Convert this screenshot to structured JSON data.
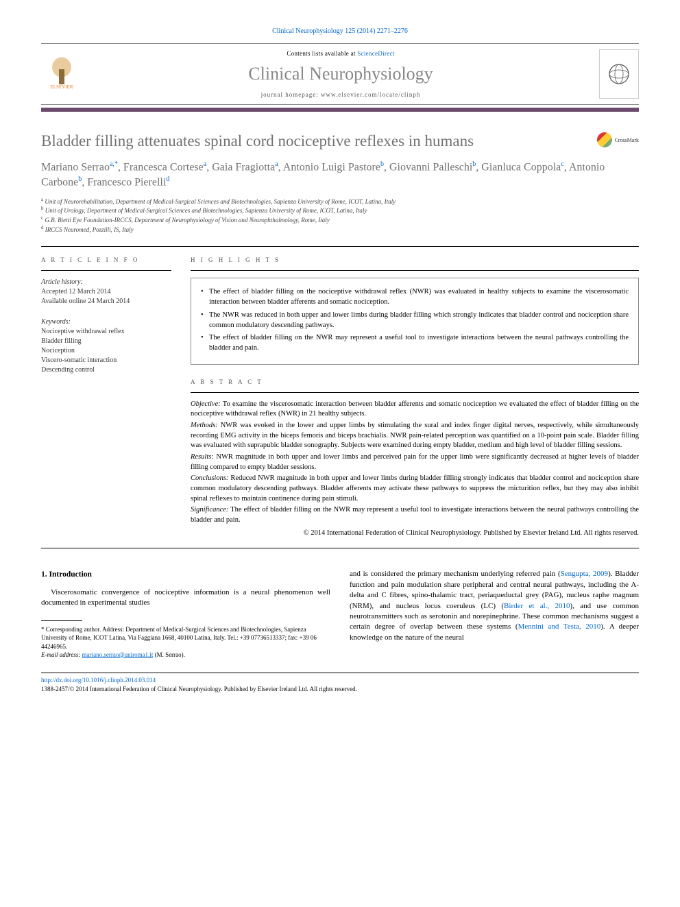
{
  "journal_ref": "Clinical Neurophysiology 125 (2014) 2271–2276",
  "header": {
    "contents_prefix": "Contents lists available at ",
    "contents_link": "ScienceDirect",
    "journal_name": "Clinical Neurophysiology",
    "homepage_prefix": "journal homepage: ",
    "homepage_url": "www.elsevier.com/locate/clinph",
    "publisher_label": "ELSEVIER"
  },
  "crossmark_label": "CrossMark",
  "title": "Bladder filling attenuates spinal cord nociceptive reflexes in humans",
  "authors_html": "Mariano Serrao|a,*|, Francesca Cortese|a|, Gaia Fragiotta|a|, Antonio Luigi Pastore|b|, Giovanni Palleschi|b|, Gianluca Coppola|c|, Antonio Carbone|b|, Francesco Pierelli|d|",
  "affiliations": [
    {
      "key": "a",
      "text": "Unit of Neurorehabilitation, Department of Medical-Surgical Sciences and Biotechnologies, Sapienza University of Rome, ICOT, Latina, Italy"
    },
    {
      "key": "b",
      "text": "Unit of Urology, Department of Medical-Surgical Sciences and Biotechnologies, Sapienza University of Rome, ICOT, Latina, Italy"
    },
    {
      "key": "c",
      "text": "G.B. Bietti Eye Foundation-IRCCS, Department of Neurophysiology of Vision and Neurophthalmology, Rome, Italy"
    },
    {
      "key": "d",
      "text": "IRCCS Neuromed, Pozzilli, IS, Italy"
    }
  ],
  "info": {
    "section_label": "A R T I C L E   I N F O",
    "history_hdr": "Article history:",
    "accepted": "Accepted 12 March 2014",
    "online": "Available online 24 March 2014",
    "keywords_hdr": "Keywords:",
    "keywords": [
      "Nociceptive withdrawal reflex",
      "Bladder filling",
      "Nociception",
      "Viscero-somatic interaction",
      "Descending control"
    ]
  },
  "highlights": {
    "label": "H I G H L I G H T S",
    "items": [
      "The effect of bladder filling on the nociceptive withdrawal reflex (NWR) was evaluated in healthy subjects to examine the viscerosomatic interaction between bladder afferents and somatic nociception.",
      "The NWR was reduced in both upper and lower limbs during bladder filling which strongly indicates that bladder control and nociception share common modulatory descending pathways.",
      "The effect of bladder filling on the NWR may represent a useful tool to investigate interactions between the neural pathways controlling the bladder and pain."
    ]
  },
  "abstract": {
    "label": "A B S T R A C T",
    "objective_lead": "Objective:",
    "objective": " To examine the viscerosomatic interaction between bladder afferents and somatic nociception we evaluated the effect of bladder filling on the nociceptive withdrawal reflex (NWR) in 21 healthy subjects.",
    "methods_lead": "Methods:",
    "methods": " NWR was evoked in the lower and upper limbs by stimulating the sural and index finger digital nerves, respectively, while simultaneously recording EMG activity in the biceps femoris and biceps brachialis. NWR pain-related perception was quantified on a 10-point pain scale. Bladder filling was evaluated with suprapubic bladder sonography. Subjects were examined during empty bladder, medium and high level of bladder filling sessions.",
    "results_lead": "Results:",
    "results": " NWR magnitude in both upper and lower limbs and perceived pain for the upper limb were significantly decreased at higher levels of bladder filling compared to empty bladder sessions.",
    "conclusions_lead": "Conclusions:",
    "conclusions": " Reduced NWR magnitude in both upper and lower limbs during bladder filling strongly indicates that bladder control and nociception share common modulatory descending pathways. Bladder afferents may activate these pathways to suppress the micturition reflex, but they may also inhibit spinal reflexes to maintain continence during pain stimuli.",
    "significance_lead": "Significance:",
    "significance": " The effect of bladder filling on the NWR may represent a useful tool to investigate interactions between the neural pathways controlling the bladder and pain.",
    "copyright": "© 2014 International Federation of Clinical Neurophysiology. Published by Elsevier Ireland Ltd. All rights reserved."
  },
  "body": {
    "intro_heading": "1. Introduction",
    "intro_left": "Viscerosomatic convergence of nociceptive information is a neural phenomenon well documented in experimental studies",
    "intro_right_1": "and is considered the primary mechanism underlying referred pain (",
    "ref1": "Sengupta, 2009",
    "intro_right_2": "). Bladder function and pain modulation share peripheral and central neural pathways, including the A-delta and C fibres, spino-thalamic tract, periaqueductal grey (PAG), nucleus raphe magnum (NRM), and nucleus locus coeruleus (LC) (",
    "ref2": "Birder et al., 2010",
    "intro_right_3": "), and use common neurotransmitters such as serotonin and norepinephrine. These common mechanisms suggest a certain degree of overlap between these systems (",
    "ref3": "Mennini and Testa, 2010",
    "intro_right_4": "). A deeper knowledge on the nature of the neural"
  },
  "corr": {
    "star": "*",
    "label": " Corresponding author. Address: Department of Medical-Surgical Sciences and Biotechnologies, Sapienza University of Rome, ICOT Latina, Via Faggiana 1668, 40100 Latina, Italy. Tel.: +39 07736513337; fax: +39 06 44246965.",
    "email_label": "E-mail address: ",
    "email": "mariano.serrao@uniroma1.it",
    "email_name": " (M. Serrao)."
  },
  "footer": {
    "doi": "http://dx.doi.org/10.1016/j.clinph.2014.03.014",
    "issn_line": "1388-2457/© 2014 International Federation of Clinical Neurophysiology. Published by Elsevier Ireland Ltd. All rights reserved."
  }
}
